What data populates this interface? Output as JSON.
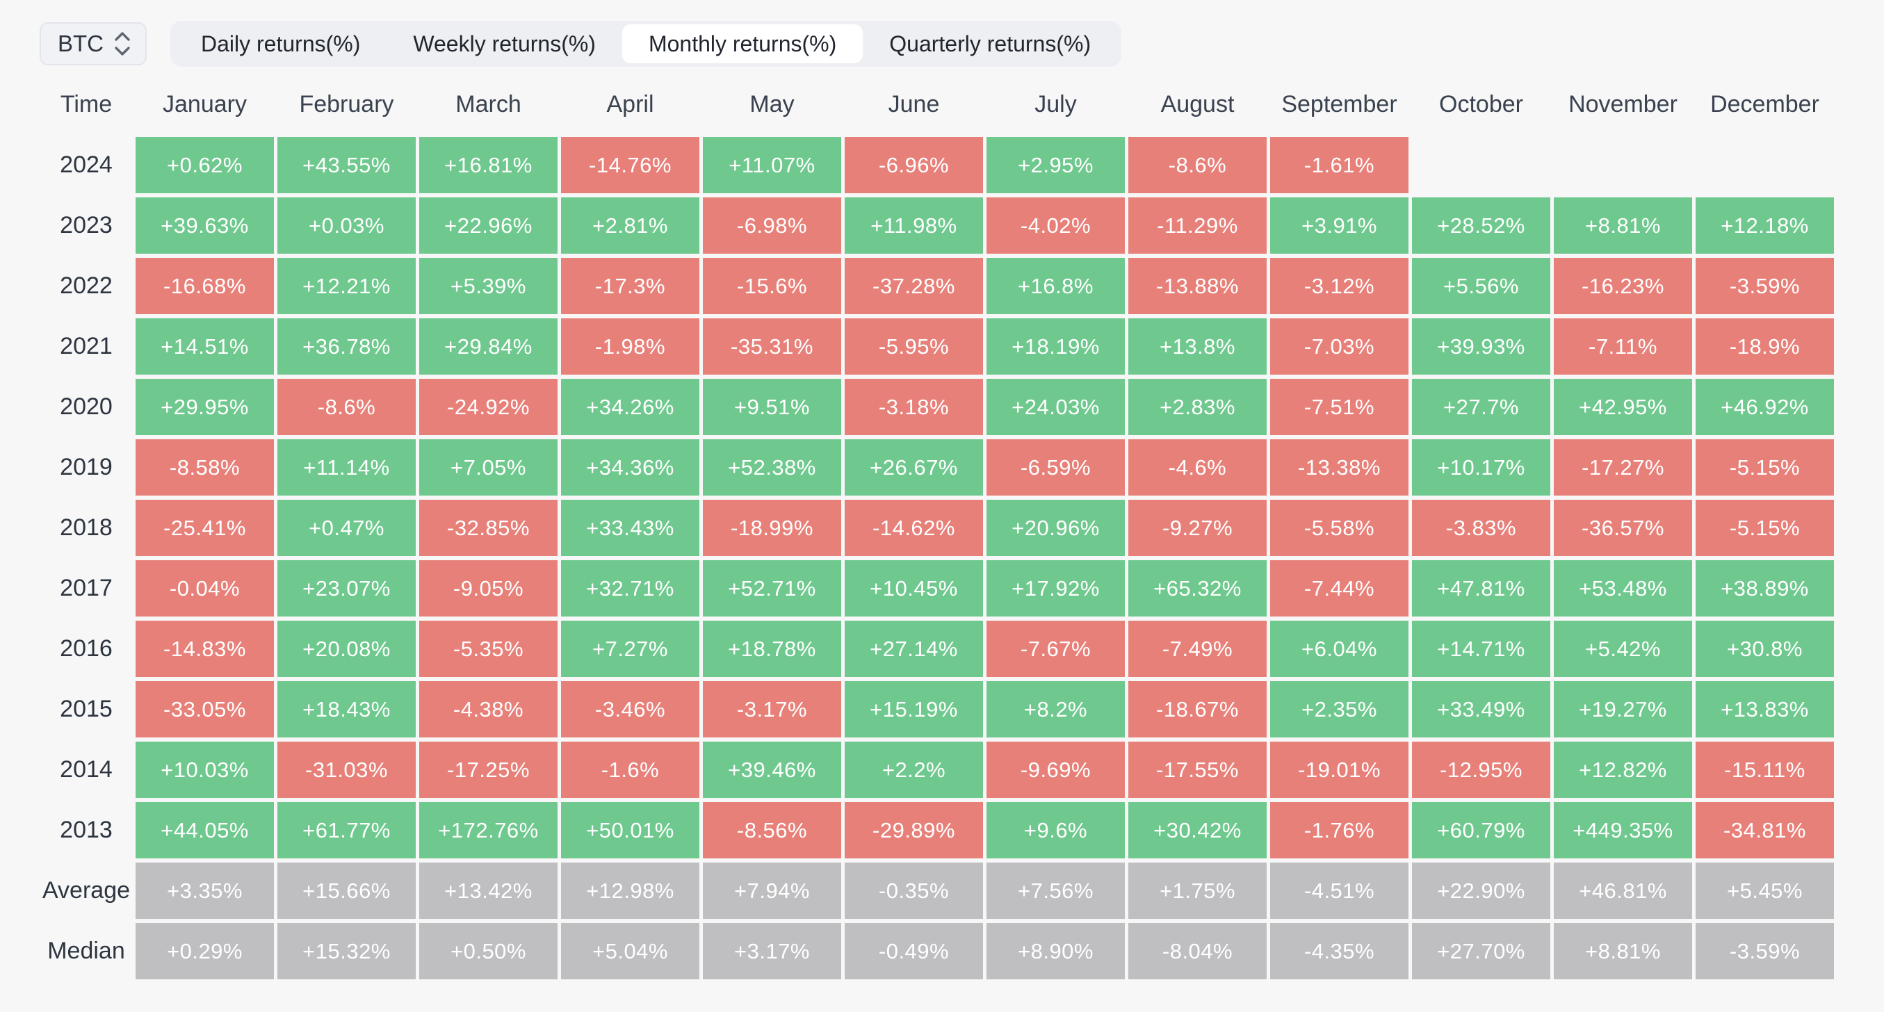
{
  "controls": {
    "asset_selector": {
      "value": "BTC",
      "icon": "updown-chevron-icon"
    },
    "tabs": [
      {
        "label": "Daily returns(%)",
        "active": false
      },
      {
        "label": "Weekly returns(%)",
        "active": false
      },
      {
        "label": "Monthly returns(%)",
        "active": true
      },
      {
        "label": "Quarterly returns(%)",
        "active": false
      }
    ]
  },
  "table": {
    "corner_label": "Time",
    "columns": [
      "January",
      "February",
      "March",
      "April",
      "May",
      "June",
      "July",
      "August",
      "September",
      "October",
      "November",
      "December"
    ]
  },
  "chart_data": {
    "type": "heatmap",
    "title": "BTC Monthly returns(%)",
    "x_categories": [
      "January",
      "February",
      "March",
      "April",
      "May",
      "June",
      "July",
      "August",
      "September",
      "October",
      "November",
      "December"
    ],
    "rows": [
      {
        "label": "2024",
        "type": "year",
        "values": [
          "+0.62%",
          "+43.55%",
          "+16.81%",
          "-14.76%",
          "+11.07%",
          "-6.96%",
          "+2.95%",
          "-8.6%",
          "-1.61%",
          "",
          "",
          ""
        ]
      },
      {
        "label": "2023",
        "type": "year",
        "values": [
          "+39.63%",
          "+0.03%",
          "+22.96%",
          "+2.81%",
          "-6.98%",
          "+11.98%",
          "-4.02%",
          "-11.29%",
          "+3.91%",
          "+28.52%",
          "+8.81%",
          "+12.18%"
        ]
      },
      {
        "label": "2022",
        "type": "year",
        "values": [
          "-16.68%",
          "+12.21%",
          "+5.39%",
          "-17.3%",
          "-15.6%",
          "-37.28%",
          "+16.8%",
          "-13.88%",
          "-3.12%",
          "+5.56%",
          "-16.23%",
          "-3.59%"
        ]
      },
      {
        "label": "2021",
        "type": "year",
        "values": [
          "+14.51%",
          "+36.78%",
          "+29.84%",
          "-1.98%",
          "-35.31%",
          "-5.95%",
          "+18.19%",
          "+13.8%",
          "-7.03%",
          "+39.93%",
          "-7.11%",
          "-18.9%"
        ]
      },
      {
        "label": "2020",
        "type": "year",
        "values": [
          "+29.95%",
          "-8.6%",
          "-24.92%",
          "+34.26%",
          "+9.51%",
          "-3.18%",
          "+24.03%",
          "+2.83%",
          "-7.51%",
          "+27.7%",
          "+42.95%",
          "+46.92%"
        ]
      },
      {
        "label": "2019",
        "type": "year",
        "values": [
          "-8.58%",
          "+11.14%",
          "+7.05%",
          "+34.36%",
          "+52.38%",
          "+26.67%",
          "-6.59%",
          "-4.6%",
          "-13.38%",
          "+10.17%",
          "-17.27%",
          "-5.15%"
        ]
      },
      {
        "label": "2018",
        "type": "year",
        "values": [
          "-25.41%",
          "+0.47%",
          "-32.85%",
          "+33.43%",
          "-18.99%",
          "-14.62%",
          "+20.96%",
          "-9.27%",
          "-5.58%",
          "-3.83%",
          "-36.57%",
          "-5.15%"
        ]
      },
      {
        "label": "2017",
        "type": "year",
        "values": [
          "-0.04%",
          "+23.07%",
          "-9.05%",
          "+32.71%",
          "+52.71%",
          "+10.45%",
          "+17.92%",
          "+65.32%",
          "-7.44%",
          "+47.81%",
          "+53.48%",
          "+38.89%"
        ]
      },
      {
        "label": "2016",
        "type": "year",
        "values": [
          "-14.83%",
          "+20.08%",
          "-5.35%",
          "+7.27%",
          "+18.78%",
          "+27.14%",
          "-7.67%",
          "-7.49%",
          "+6.04%",
          "+14.71%",
          "+5.42%",
          "+30.8%"
        ]
      },
      {
        "label": "2015",
        "type": "year",
        "values": [
          "-33.05%",
          "+18.43%",
          "-4.38%",
          "-3.46%",
          "-3.17%",
          "+15.19%",
          "+8.2%",
          "-18.67%",
          "+2.35%",
          "+33.49%",
          "+19.27%",
          "+13.83%"
        ]
      },
      {
        "label": "2014",
        "type": "year",
        "values": [
          "+10.03%",
          "-31.03%",
          "-17.25%",
          "-1.6%",
          "+39.46%",
          "+2.2%",
          "-9.69%",
          "-17.55%",
          "-19.01%",
          "-12.95%",
          "+12.82%",
          "-15.11%"
        ]
      },
      {
        "label": "2013",
        "type": "year",
        "values": [
          "+44.05%",
          "+61.77%",
          "+172.76%",
          "+50.01%",
          "-8.56%",
          "-29.89%",
          "+9.6%",
          "+30.42%",
          "-1.76%",
          "+60.79%",
          "+449.35%",
          "-34.81%"
        ]
      },
      {
        "label": "Average",
        "type": "summary",
        "values": [
          "+3.35%",
          "+15.66%",
          "+13.42%",
          "+12.98%",
          "+7.94%",
          "-0.35%",
          "+7.56%",
          "+1.75%",
          "-4.51%",
          "+22.90%",
          "+46.81%",
          "+5.45%"
        ]
      },
      {
        "label": "Median",
        "type": "summary",
        "values": [
          "+0.29%",
          "+15.32%",
          "+0.50%",
          "+5.04%",
          "+3.17%",
          "-0.49%",
          "+8.90%",
          "-8.04%",
          "-4.35%",
          "+27.70%",
          "+8.81%",
          "-3.59%"
        ]
      }
    ],
    "legend": {
      "positive_color": "#6fc98e",
      "negative_color": "#e8807a",
      "summary_color": "#bfbec1"
    }
  },
  "colors": {
    "positive": "#6fc98e",
    "negative": "#e8807a",
    "summary": "#bfbec1",
    "page_bg": "#f7f7f8",
    "tabbar_bg": "#edeff3",
    "active_tab_bg": "#ffffff",
    "cell_text": "#ffffff",
    "dark_text": "#2d3540"
  }
}
